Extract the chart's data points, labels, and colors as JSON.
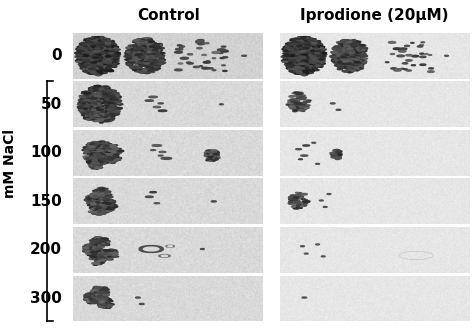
{
  "col_labels": [
    "Control",
    "Iprodione (20μM)"
  ],
  "row_labels": [
    "0",
    "50",
    "100",
    "150",
    "200",
    "300"
  ],
  "ylabel": "mM NaCl",
  "col_label_fontsize": 11,
  "row_label_fontsize": 11,
  "ylabel_fontsize": 10,
  "background_color": "#ffffff",
  "fig_width": 4.74,
  "fig_height": 3.28,
  "nrows": 6,
  "ncols": 2
}
